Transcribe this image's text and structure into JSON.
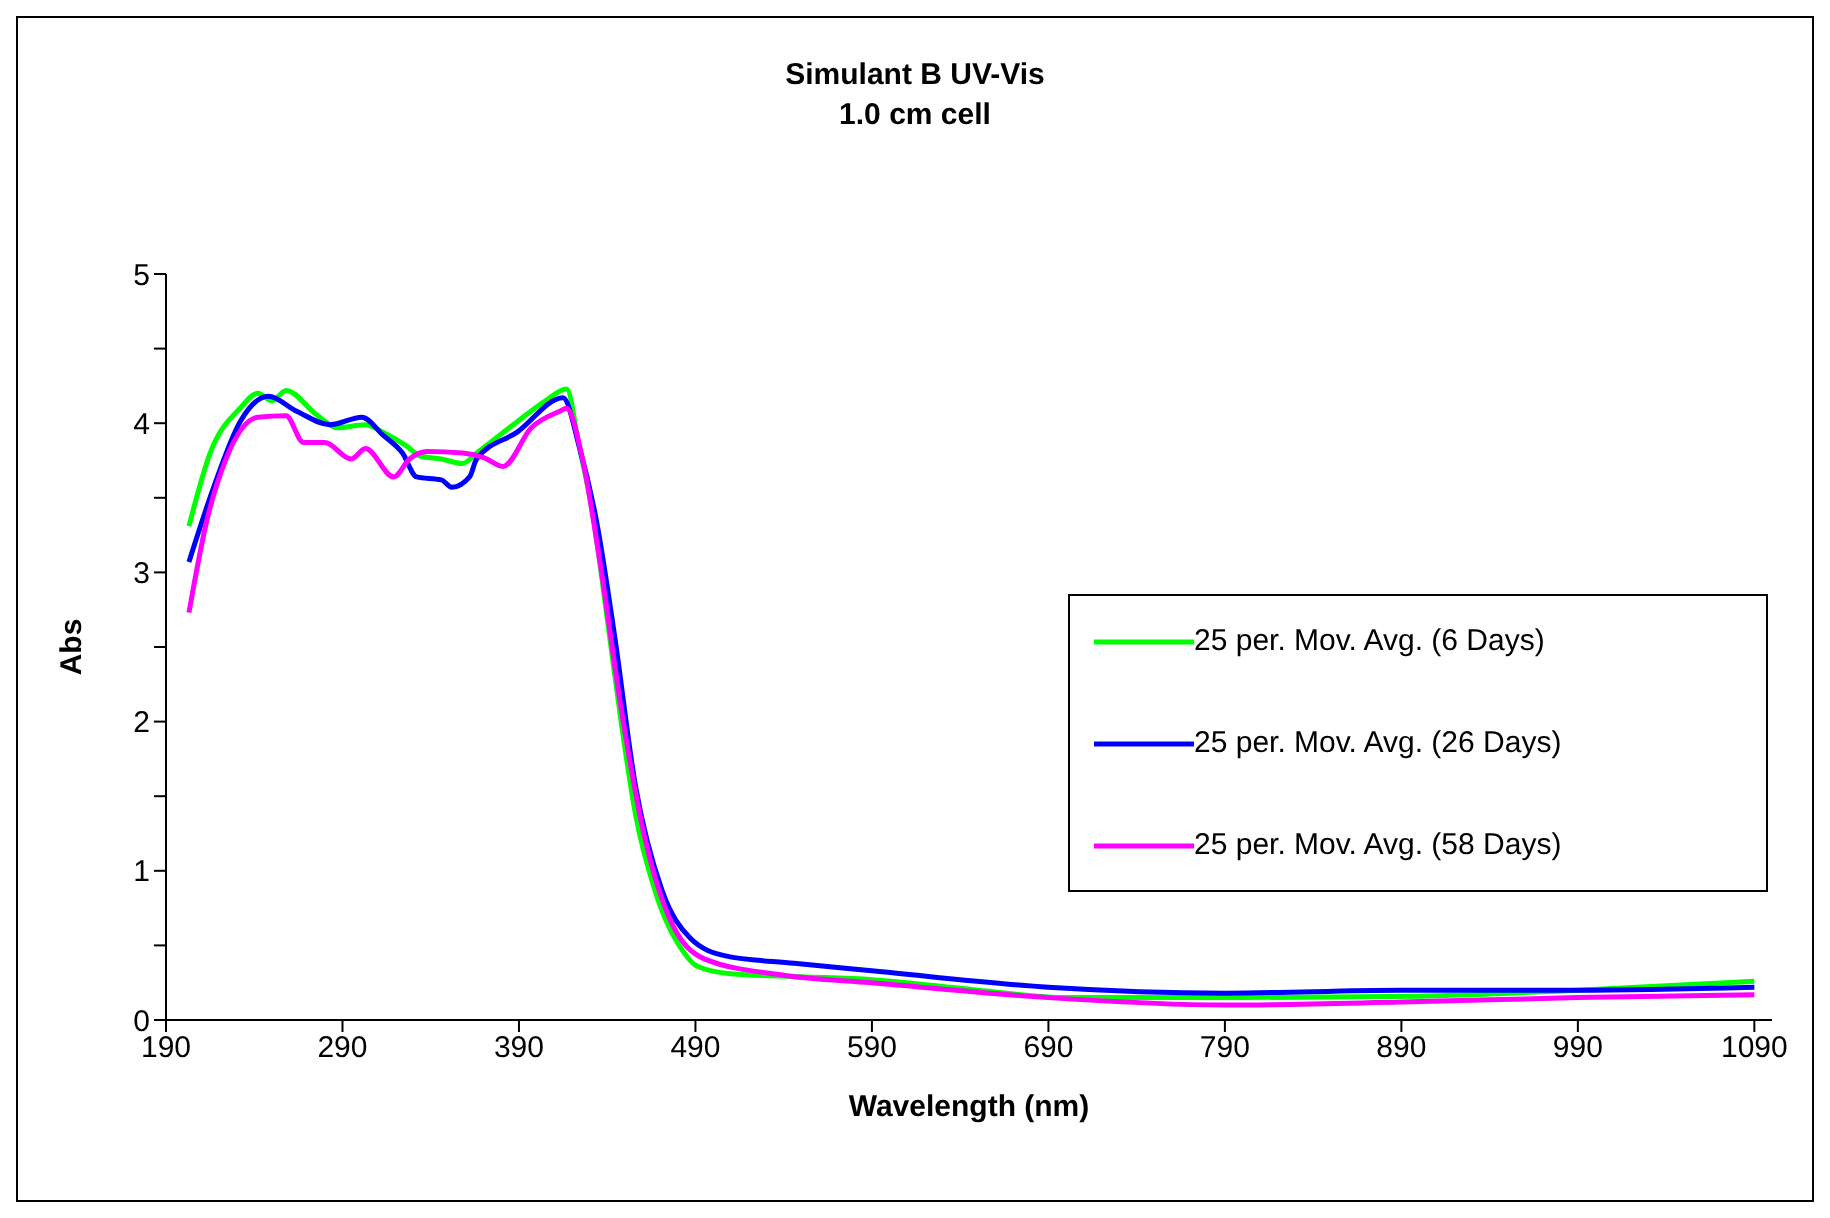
{
  "chart_data": {
    "type": "line",
    "title": "Simulant B UV-Vis",
    "subtitle": "1.0 cm cell",
    "xlabel": "Wavelength (nm)",
    "ylabel": "Abs",
    "xlim": [
      190,
      1100
    ],
    "xticks": [
      190,
      290,
      390,
      490,
      590,
      690,
      790,
      890,
      990,
      1090
    ],
    "ylim": [
      0,
      5
    ],
    "yticks": [
      0,
      {
        "value": 0.5,
        "label": null
      },
      1,
      {
        "value": 1.5,
        "label": null
      },
      2,
      {
        "value": 2.5,
        "label": null
      },
      3,
      {
        "value": 3.5,
        "label": null
      },
      4,
      {
        "value": 4.5,
        "label": null
      },
      5
    ],
    "legend": "right",
    "marker": "none",
    "line_style": "solid",
    "series": [
      {
        "name": "25 per. Mov. Avg. (6 Days)",
        "color": "#00ff00",
        "x": [
          203,
          215,
          232,
          242,
          250,
          258,
          275,
          287,
          303,
          313,
          326,
          334,
          346,
          358,
          366,
          389,
          405,
          417,
          424,
          432,
          440,
          448,
          456,
          467,
          483,
          491,
          510,
          550,
          590,
          650,
          700,
          800,
          900,
          990,
          1090
        ],
        "values": [
          3.31,
          3.8,
          4.1,
          4.2,
          4.15,
          4.22,
          4.06,
          3.97,
          3.99,
          3.94,
          3.85,
          3.78,
          3.76,
          3.73,
          3.8,
          4.01,
          4.15,
          4.23,
          3.85,
          3.38,
          2.69,
          1.99,
          1.38,
          0.87,
          0.46,
          0.36,
          0.31,
          0.29,
          0.27,
          0.2,
          0.15,
          0.15,
          0.16,
          0.2,
          0.26
        ]
      },
      {
        "name": "25 per. Mov. Avg. (26 Days)",
        "color": "#0000ff",
        "x": [
          203,
          217,
          232,
          248,
          264,
          283,
          301,
          313,
          324,
          332,
          346,
          352,
          362,
          366,
          389,
          415,
          424,
          434,
          444,
          456,
          471,
          487,
          507,
          546,
          590,
          690,
          790,
          890,
          990,
          1090
        ],
        "values": [
          3.07,
          3.57,
          4.01,
          4.18,
          4.08,
          3.99,
          4.04,
          3.92,
          3.8,
          3.64,
          3.62,
          3.57,
          3.64,
          3.76,
          3.94,
          4.17,
          3.85,
          3.34,
          2.59,
          1.57,
          0.87,
          0.55,
          0.43,
          0.38,
          0.33,
          0.22,
          0.18,
          0.2,
          0.2,
          0.22
        ]
      },
      {
        "name": "25 per. Mov. Avg. (58 Days)",
        "color": "#ff00ff",
        "x": [
          203,
          213,
          224,
          242,
          258,
          268,
          280,
          295,
          303,
          319,
          328,
          338,
          358,
          370,
          381,
          397,
          413,
          417,
          426,
          436,
          448,
          460,
          475,
          495,
          540,
          590,
          690,
          790,
          890,
          990,
          1090
        ],
        "values": [
          2.73,
          3.34,
          3.76,
          4.04,
          4.05,
          3.87,
          3.87,
          3.76,
          3.83,
          3.64,
          3.76,
          3.81,
          3.8,
          3.77,
          3.71,
          3.97,
          4.08,
          4.1,
          3.76,
          3.06,
          2.08,
          1.29,
          0.69,
          0.41,
          0.3,
          0.25,
          0.15,
          0.1,
          0.12,
          0.15,
          0.17
        ]
      }
    ]
  }
}
